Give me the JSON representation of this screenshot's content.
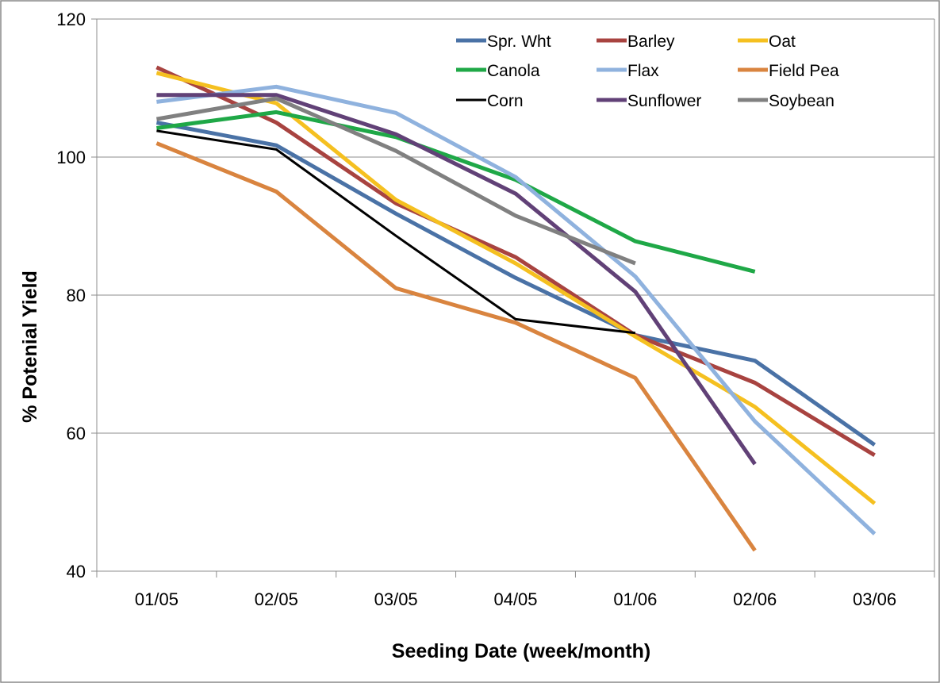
{
  "chart_data": {
    "type": "line",
    "xlabel": "Seeding Date (week/month)",
    "ylabel": "% Potenial  Yield",
    "categories": [
      "01/05",
      "02/05",
      "03/05",
      "04/05",
      "01/06",
      "02/06",
      "03/06"
    ],
    "ylim": [
      40,
      120
    ],
    "yticks": [
      40,
      60,
      80,
      100,
      120
    ],
    "grid": true,
    "legend_position": "top-right",
    "series": [
      {
        "name": "Spr. Wht",
        "color": "#4a72a6",
        "values": [
          105.0,
          101.7,
          91.8,
          82.5,
          74.2,
          70.5,
          58.3
        ]
      },
      {
        "name": "Barley",
        "color": "#a84340",
        "values": [
          113.0,
          105.0,
          93.3,
          85.5,
          74.2,
          67.3,
          56.8
        ]
      },
      {
        "name": "Oat",
        "color": "#f5c020",
        "values": [
          112.2,
          107.8,
          93.8,
          84.6,
          74.0,
          63.8,
          49.8
        ]
      },
      {
        "name": "Canola",
        "color": "#1fa847",
        "values": [
          104.2,
          106.5,
          102.9,
          96.7,
          87.8,
          83.4,
          null
        ]
      },
      {
        "name": "Flax",
        "color": "#8fb2de",
        "values": [
          108.0,
          110.2,
          106.4,
          97.1,
          82.7,
          61.7,
          45.4
        ]
      },
      {
        "name": "Field Pea",
        "color": "#d9843f",
        "values": [
          102.0,
          95.0,
          81.0,
          76.0,
          68.0,
          43.0,
          null
        ]
      },
      {
        "name": "Corn",
        "color": "#000000",
        "values": [
          103.8,
          101.1,
          88.6,
          76.5,
          74.5,
          null,
          null
        ]
      },
      {
        "name": "Sunflower",
        "color": "#614177",
        "values": [
          109.0,
          109.0,
          103.3,
          94.7,
          80.5,
          55.5,
          null
        ]
      },
      {
        "name": "Soybean",
        "color": "#808080",
        "values": [
          105.5,
          108.5,
          100.9,
          91.5,
          84.6,
          null,
          null
        ]
      }
    ]
  }
}
